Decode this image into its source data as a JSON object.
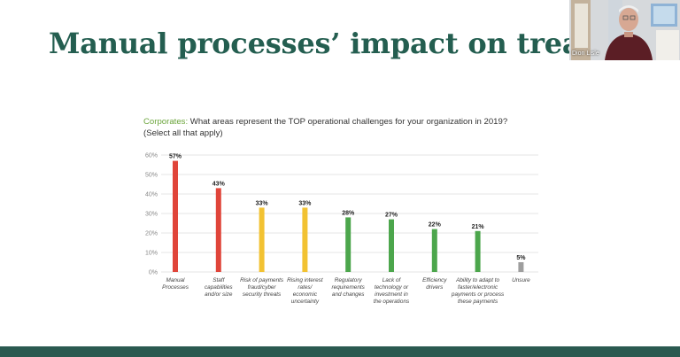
{
  "slide": {
    "title": "Manual processes’ impact on treasurers",
    "question_lead": "Corporates:",
    "question_text": " What areas represent the TOP operational challenges for your organization in 2019?",
    "question_sub": "(Select all that apply)"
  },
  "video": {
    "participant_name": "Dion Lisle"
  },
  "chart_data": {
    "type": "bar",
    "categories": [
      "Manual Processes",
      "Staff capabilities and/or size",
      "Risk of payments fraud/cyber security threats",
      "Rising interest rates/ economic uncertainty",
      "Regulatory requirements and changes",
      "Lack of technology or investment in the operations",
      "Efficiency drivers",
      "Ability to adapt to faster/electronic payments or process these payments",
      "Unsure"
    ],
    "label_lines": [
      [
        "Manual",
        "Processes"
      ],
      [
        "Staff",
        "capabilities",
        "and/or size"
      ],
      [
        "Risk of payments",
        "fraud/cyber",
        "security threats"
      ],
      [
        "Rising interest",
        "rates/",
        "economic",
        "uncertainty"
      ],
      [
        "Regulatory",
        "requirements",
        "and changes"
      ],
      [
        "Lack of",
        "technology or",
        "investment in",
        "the operations"
      ],
      [
        "Efficiency",
        "drivers"
      ],
      [
        "Ability to adapt to",
        "faster/electronic",
        "payments or process",
        "these payments"
      ],
      [
        "Unsure"
      ]
    ],
    "values": [
      57,
      43,
      33,
      33,
      28,
      27,
      22,
      21,
      5
    ],
    "value_labels": [
      "57%",
      "43%",
      "33%",
      "33%",
      "28%",
      "27%",
      "22%",
      "21%",
      "5%"
    ],
    "bar_colors": [
      "#e0453a",
      "#e0453a",
      "#f2c232",
      "#f2c232",
      "#4ca64c",
      "#4ca64c",
      "#4ca64c",
      "#4ca64c",
      "#9e9e9e"
    ],
    "yticks": [
      "0%",
      "10%",
      "20%",
      "30%",
      "40%",
      "50%",
      "60%"
    ],
    "ylim": [
      0,
      60
    ],
    "grid": true
  },
  "colors": {
    "title": "#245e50",
    "accent_green": "#6aa43a",
    "footer": "#2a5a50"
  }
}
